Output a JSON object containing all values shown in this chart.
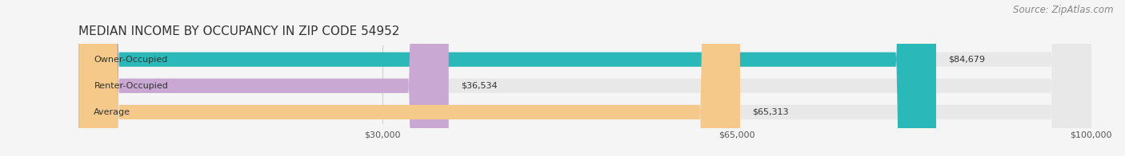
{
  "title": "MEDIAN INCOME BY OCCUPANCY IN ZIP CODE 54952",
  "source": "Source: ZipAtlas.com",
  "categories": [
    "Owner-Occupied",
    "Renter-Occupied",
    "Average"
  ],
  "values": [
    84679,
    36534,
    65313
  ],
  "bar_colors": [
    "#2ab8b8",
    "#c9a8d4",
    "#f5c98a"
  ],
  "bar_bg_color": "#e8e8e8",
  "value_labels": [
    "$84,679",
    "$36,534",
    "$65,313"
  ],
  "xlim": [
    0,
    100000
  ],
  "xticks": [
    30000,
    65000,
    100000
  ],
  "xtick_labels": [
    "$30,000",
    "$65,000",
    "$100,000"
  ],
  "title_fontsize": 11,
  "source_fontsize": 8.5,
  "label_fontsize": 8,
  "bar_height": 0.55,
  "background_color": "#f5f5f5"
}
